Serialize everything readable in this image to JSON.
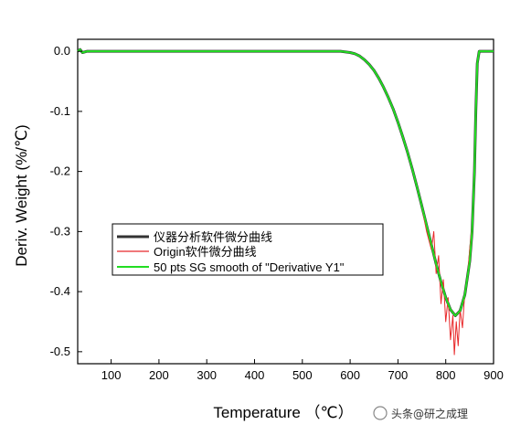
{
  "chart_data": {
    "type": "line",
    "title": "",
    "xlabel": "Temperature （℃）",
    "ylabel": "Deriv. Weight (%/℃)",
    "xlim": [
      30,
      900
    ],
    "ylim": [
      -0.52,
      0.02
    ],
    "x_ticks": [
      100,
      200,
      300,
      400,
      500,
      600,
      700,
      800,
      900
    ],
    "x_tick_labels": [
      "100",
      "200",
      "300",
      "400",
      "500",
      "600",
      "700",
      "800",
      "900"
    ],
    "y_ticks": [
      0.0,
      -0.1,
      -0.2,
      -0.3,
      -0.4,
      -0.5
    ],
    "y_tick_labels": [
      "0.0",
      "-0.1",
      "-0.2",
      "-0.3",
      "-0.4",
      "-0.5"
    ],
    "grid": false,
    "legend_position": "center-left",
    "series": [
      {
        "name": "仪器分析软件微分曲线",
        "color": "#333333",
        "points": [
          [
            30,
            0
          ],
          [
            35,
            0.003
          ],
          [
            40,
            -0.002
          ],
          [
            50,
            0
          ],
          [
            100,
            0
          ],
          [
            200,
            0
          ],
          [
            300,
            0
          ],
          [
            400,
            0
          ],
          [
            500,
            0
          ],
          [
            580,
            0
          ],
          [
            600,
            -0.002
          ],
          [
            610,
            -0.004
          ],
          [
            620,
            -0.008
          ],
          [
            630,
            -0.014
          ],
          [
            640,
            -0.022
          ],
          [
            650,
            -0.032
          ],
          [
            660,
            -0.045
          ],
          [
            670,
            -0.06
          ],
          [
            680,
            -0.077
          ],
          [
            690,
            -0.096
          ],
          [
            700,
            -0.118
          ],
          [
            710,
            -0.142
          ],
          [
            720,
            -0.168
          ],
          [
            730,
            -0.196
          ],
          [
            740,
            -0.226
          ],
          [
            750,
            -0.258
          ],
          [
            760,
            -0.29
          ],
          [
            770,
            -0.322
          ],
          [
            780,
            -0.354
          ],
          [
            790,
            -0.384
          ],
          [
            800,
            -0.41
          ],
          [
            810,
            -0.43
          ],
          [
            820,
            -0.44
          ],
          [
            830,
            -0.432
          ],
          [
            840,
            -0.405
          ],
          [
            850,
            -0.35
          ],
          [
            855,
            -0.3
          ],
          [
            860,
            -0.2
          ],
          [
            863,
            -0.1
          ],
          [
            866,
            -0.02
          ],
          [
            870,
            0
          ],
          [
            900,
            0
          ]
        ]
      },
      {
        "name": "Origin软件微分曲线",
        "color": "#e8282a",
        "points": [
          [
            30,
            0
          ],
          [
            35,
            0.003
          ],
          [
            40,
            -0.002
          ],
          [
            50,
            0
          ],
          [
            100,
            0
          ],
          [
            200,
            0
          ],
          [
            300,
            0
          ],
          [
            400,
            0
          ],
          [
            500,
            0
          ],
          [
            580,
            0
          ],
          [
            600,
            -0.002
          ],
          [
            610,
            -0.004
          ],
          [
            620,
            -0.008
          ],
          [
            630,
            -0.014
          ],
          [
            640,
            -0.022
          ],
          [
            650,
            -0.032
          ],
          [
            660,
            -0.045
          ],
          [
            670,
            -0.06
          ],
          [
            680,
            -0.077
          ],
          [
            690,
            -0.096
          ],
          [
            700,
            -0.118
          ],
          [
            710,
            -0.142
          ],
          [
            720,
            -0.168
          ],
          [
            730,
            -0.196
          ],
          [
            740,
            -0.226
          ],
          [
            750,
            -0.26
          ],
          [
            760,
            -0.3
          ],
          [
            770,
            -0.33
          ],
          [
            775,
            -0.3
          ],
          [
            780,
            -0.37
          ],
          [
            785,
            -0.34
          ],
          [
            790,
            -0.42
          ],
          [
            795,
            -0.38
          ],
          [
            800,
            -0.45
          ],
          [
            805,
            -0.41
          ],
          [
            810,
            -0.48
          ],
          [
            815,
            -0.44
          ],
          [
            818,
            -0.505
          ],
          [
            822,
            -0.45
          ],
          [
            826,
            -0.49
          ],
          [
            830,
            -0.43
          ],
          [
            835,
            -0.46
          ],
          [
            840,
            -0.4
          ],
          [
            845,
            -0.38
          ],
          [
            850,
            -0.33
          ],
          [
            855,
            -0.29
          ],
          [
            860,
            -0.2
          ],
          [
            863,
            -0.1
          ],
          [
            866,
            -0.02
          ],
          [
            870,
            0
          ],
          [
            900,
            0
          ]
        ]
      },
      {
        "name": "50 pts SG smooth of \"Derivative Y1\"",
        "color": "#22dd22",
        "points": [
          [
            30,
            0
          ],
          [
            35,
            0.003
          ],
          [
            40,
            -0.002
          ],
          [
            50,
            0
          ],
          [
            100,
            0
          ],
          [
            200,
            0
          ],
          [
            300,
            0
          ],
          [
            400,
            0
          ],
          [
            500,
            0
          ],
          [
            580,
            0
          ],
          [
            600,
            -0.002
          ],
          [
            610,
            -0.004
          ],
          [
            620,
            -0.008
          ],
          [
            630,
            -0.014
          ],
          [
            640,
            -0.022
          ],
          [
            650,
            -0.032
          ],
          [
            660,
            -0.045
          ],
          [
            670,
            -0.06
          ],
          [
            680,
            -0.077
          ],
          [
            690,
            -0.096
          ],
          [
            700,
            -0.118
          ],
          [
            710,
            -0.142
          ],
          [
            720,
            -0.168
          ],
          [
            730,
            -0.196
          ],
          [
            740,
            -0.226
          ],
          [
            750,
            -0.258
          ],
          [
            760,
            -0.29
          ],
          [
            770,
            -0.322
          ],
          [
            780,
            -0.354
          ],
          [
            790,
            -0.384
          ],
          [
            800,
            -0.41
          ],
          [
            810,
            -0.43
          ],
          [
            820,
            -0.44
          ],
          [
            830,
            -0.432
          ],
          [
            840,
            -0.405
          ],
          [
            850,
            -0.35
          ],
          [
            855,
            -0.3
          ],
          [
            860,
            -0.2
          ],
          [
            863,
            -0.1
          ],
          [
            866,
            -0.02
          ],
          [
            870,
            0
          ],
          [
            900,
            0
          ]
        ]
      }
    ]
  },
  "watermark": {
    "text": "头条@研之成理"
  }
}
